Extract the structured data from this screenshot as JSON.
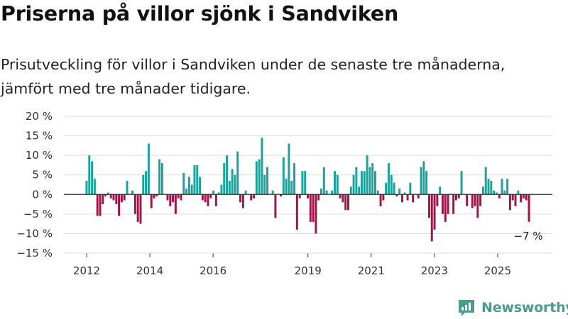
{
  "title": "Priserna på villor sjönk i Sandviken",
  "subtitle": "Prisutveckling för villor i Sandviken under de senaste tre månaderna, jämfört med tre månader tidigare.",
  "logo": {
    "text": "Newsworthy",
    "icon": "newsworthy-logo-icon",
    "color": "#4a9c8c"
  },
  "colors": {
    "positive": "#1aa39a",
    "negative": "#a3134a",
    "grid": "#dddddd",
    "axis": "#333333"
  },
  "chart_data": {
    "type": "bar",
    "ylim": [
      -15,
      20
    ],
    "yticks": [
      20,
      15,
      10,
      5,
      0,
      -5,
      -10,
      -15
    ],
    "ytick_labels": [
      "20 %",
      "15 %",
      "10 %",
      "5 %",
      "0 %",
      "−5 %",
      "−10 %",
      "−15 %"
    ],
    "xticks": [
      2012,
      2014,
      2016,
      2019,
      2021,
      2023,
      2025
    ],
    "xlim": [
      2012,
      2025.99
    ],
    "grid": true,
    "last_label": "−7 %",
    "values": [
      3.5,
      10,
      8.5,
      4,
      -5.5,
      -5.5,
      -2.5,
      -0.5,
      0.5,
      -1,
      -1.5,
      -2.5,
      -5.5,
      -2,
      -1.5,
      3.5,
      0,
      1,
      -5,
      -7,
      -7.5,
      5,
      6,
      13,
      -3.5,
      -1,
      -0.5,
      9,
      8,
      0,
      -1.5,
      -3,
      -2,
      -5,
      -1,
      -1.5,
      5.5,
      1.5,
      4.5,
      2.5,
      7.5,
      7.5,
      4.5,
      -1.5,
      -2,
      -3,
      -1,
      1,
      -3,
      0.5,
      2.5,
      8,
      10,
      3.5,
      6.5,
      5,
      11,
      -2,
      -3.5,
      1,
      0,
      -1.5,
      -1,
      8.5,
      9,
      14.5,
      5,
      7,
      0,
      1,
      -6,
      0,
      -0.5,
      9.5,
      4,
      13,
      3.5,
      8,
      -9,
      -1,
      6,
      6,
      -1,
      -7,
      -7,
      -10,
      -1.5,
      1.5,
      7,
      1,
      0,
      1,
      6,
      5,
      -1,
      -2,
      -4,
      -4,
      2,
      5,
      7,
      2,
      6,
      6,
      10,
      7,
      8,
      6,
      1,
      -3,
      -1.5,
      3,
      8,
      5,
      3,
      -0.5,
      1.5,
      -2,
      0.5,
      -1.5,
      3,
      -2,
      0,
      -1,
      7,
      8.5,
      6,
      -6,
      -12,
      -9,
      -3,
      2,
      -5,
      -7,
      -5,
      0,
      -5,
      -1.5,
      -1,
      6,
      0,
      -3,
      0,
      -3.5,
      -3,
      -6,
      -3,
      2,
      7,
      4,
      3.5,
      1,
      0.5,
      -1,
      4,
      1,
      4,
      -4,
      -1.5,
      -3,
      1,
      -2,
      -1,
      -1.5,
      -7
    ]
  }
}
